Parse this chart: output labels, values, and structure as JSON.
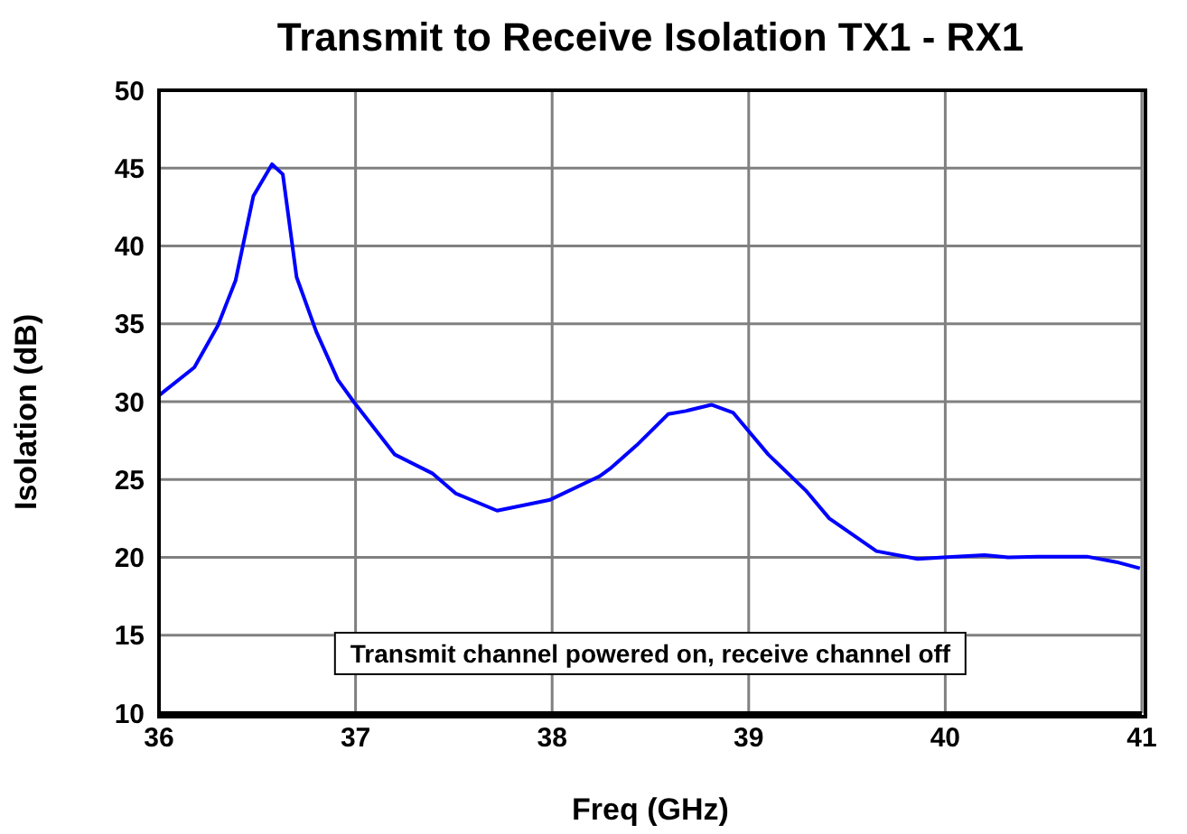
{
  "chart_data": {
    "type": "line",
    "title": "Transmit to Receive Isolation TX1 - RX1",
    "xlabel": "Freq (GHz)",
    "ylabel": "Isolation (dB)",
    "annotations": [
      "Transmit channel powered on, receive channel off"
    ],
    "x": [
      36,
      36.18,
      36.3,
      36.39,
      36.48,
      36.575,
      36.63,
      36.7,
      36.8,
      36.91,
      36.99,
      37.2,
      37.39,
      37.51,
      37.72,
      37.99,
      38.24,
      38.3,
      38.43,
      38.59,
      38.68,
      38.81,
      38.92,
      39.1,
      39.29,
      39.41,
      39.65,
      39.86,
      39.99,
      40.2,
      40.32,
      40.47,
      40.72,
      40.87,
      40.99
    ],
    "series": [
      {
        "color": "#0000ff",
        "values": [
          30.4,
          32.2,
          34.9,
          37.8,
          43.2,
          45.25,
          44.6,
          38,
          34.5,
          31.4,
          30,
          26.6,
          25.4,
          24.1,
          23,
          23.7,
          25.2,
          25.75,
          27.2,
          29.2,
          29.4,
          29.8,
          29.3,
          26.6,
          24.3,
          22.5,
          20.4,
          19.9,
          20,
          20.15,
          20,
          20.05,
          20.05,
          19.7,
          19.3
        ]
      }
    ],
    "xlim": [
      36,
      41
    ],
    "xticks": [
      36,
      37,
      38,
      39,
      40,
      41
    ],
    "ylim": [
      10,
      50
    ],
    "yticks": [
      10,
      15,
      20,
      25,
      30,
      35,
      40,
      45,
      50
    ],
    "grid": true,
    "legend": false,
    "marker": "none",
    "line_style": "solid"
  }
}
